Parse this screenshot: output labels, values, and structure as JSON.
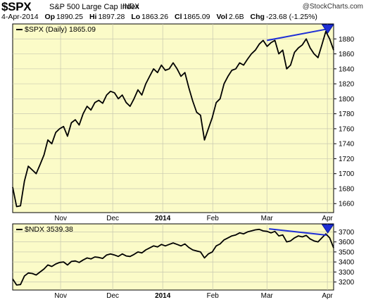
{
  "header": {
    "symbol": "$SPX",
    "name": "S&P 500 Large Cap Index",
    "exchange": "INDX",
    "watermark": "@StockCharts.com",
    "date": "4-Apr-2014",
    "op_label": "Op",
    "op": "1890.25",
    "hi_label": "Hi",
    "hi": "1897.28",
    "lo_label": "Lo",
    "lo": "1863.26",
    "cl_label": "Cl",
    "cl": "1865.09",
    "vol_label": "Vol",
    "vol": "2.6B",
    "chg_label": "Chg",
    "chg": "-23.68 (-1.25%)"
  },
  "colors": {
    "panel_bg": "#fbfbc8",
    "line": "#000000",
    "trend": "#1f2fd6",
    "grid": "#c8c8b0"
  },
  "chart_data": [
    {
      "type": "line",
      "legend": "$SPX (Daily) 1865.09",
      "ylim": [
        1648,
        1900
      ],
      "yticks": [
        1660,
        1680,
        1700,
        1720,
        1740,
        1760,
        1780,
        1800,
        1820,
        1840,
        1860,
        1880
      ],
      "xticks": [
        {
          "label": "Nov",
          "t": 11.5
        },
        {
          "label": "Dec",
          "t": 24
        },
        {
          "label": "2014",
          "t": 36
        },
        {
          "label": "Feb",
          "t": 48
        },
        {
          "label": "Mar",
          "t": 61
        },
        {
          "label": "Apr",
          "t": 75.5
        }
      ],
      "xmax": 77,
      "values": [
        1682,
        1656,
        1657,
        1690,
        1710,
        1705,
        1700,
        1712,
        1725,
        1745,
        1740,
        1755,
        1760,
        1763,
        1750,
        1768,
        1772,
        1765,
        1780,
        1790,
        1785,
        1795,
        1798,
        1794,
        1805,
        1810,
        1808,
        1800,
        1805,
        1795,
        1790,
        1800,
        1812,
        1805,
        1820,
        1830,
        1840,
        1835,
        1845,
        1838,
        1840,
        1848,
        1840,
        1830,
        1835,
        1815,
        1797,
        1782,
        1778,
        1745,
        1760,
        1775,
        1795,
        1800,
        1820,
        1830,
        1838,
        1840,
        1848,
        1845,
        1853,
        1860,
        1865,
        1873,
        1878,
        1870,
        1875,
        1878,
        1860,
        1865,
        1840,
        1845,
        1862,
        1868,
        1872,
        1880,
        1868,
        1860,
        1855,
        1872,
        1890,
        1880,
        1865
      ],
      "trendline": {
        "x": [
          61,
          75.3
        ],
        "y": [
          1878,
          1893
        ]
      },
      "arrow_at": 75.6
    },
    {
      "type": "line",
      "legend": "$NDX 3539.38",
      "ylim": [
        3120,
        3780
      ],
      "yticks": [
        3200,
        3300,
        3400,
        3500,
        3600,
        3700
      ],
      "xmax": 77,
      "values": [
        3230,
        3170,
        3175,
        3260,
        3290,
        3285,
        3270,
        3300,
        3330,
        3370,
        3355,
        3380,
        3395,
        3400,
        3370,
        3405,
        3410,
        3395,
        3420,
        3440,
        3430,
        3450,
        3445,
        3435,
        3470,
        3480,
        3470,
        3455,
        3480,
        3460,
        3455,
        3475,
        3500,
        3490,
        3520,
        3540,
        3560,
        3550,
        3575,
        3560,
        3575,
        3590,
        3575,
        3560,
        3580,
        3545,
        3520,
        3510,
        3500,
        3440,
        3480,
        3500,
        3560,
        3580,
        3620,
        3640,
        3660,
        3670,
        3690,
        3680,
        3700,
        3710,
        3720,
        3725,
        3710,
        3705,
        3690,
        3705,
        3660,
        3670,
        3600,
        3610,
        3640,
        3660,
        3650,
        3665,
        3630,
        3610,
        3600,
        3640,
        3680,
        3640,
        3540
      ],
      "trendline": {
        "x": [
          61.5,
          75.3
        ],
        "y": [
          3730,
          3668
        ]
      },
      "arrow_at": 75.6
    }
  ]
}
